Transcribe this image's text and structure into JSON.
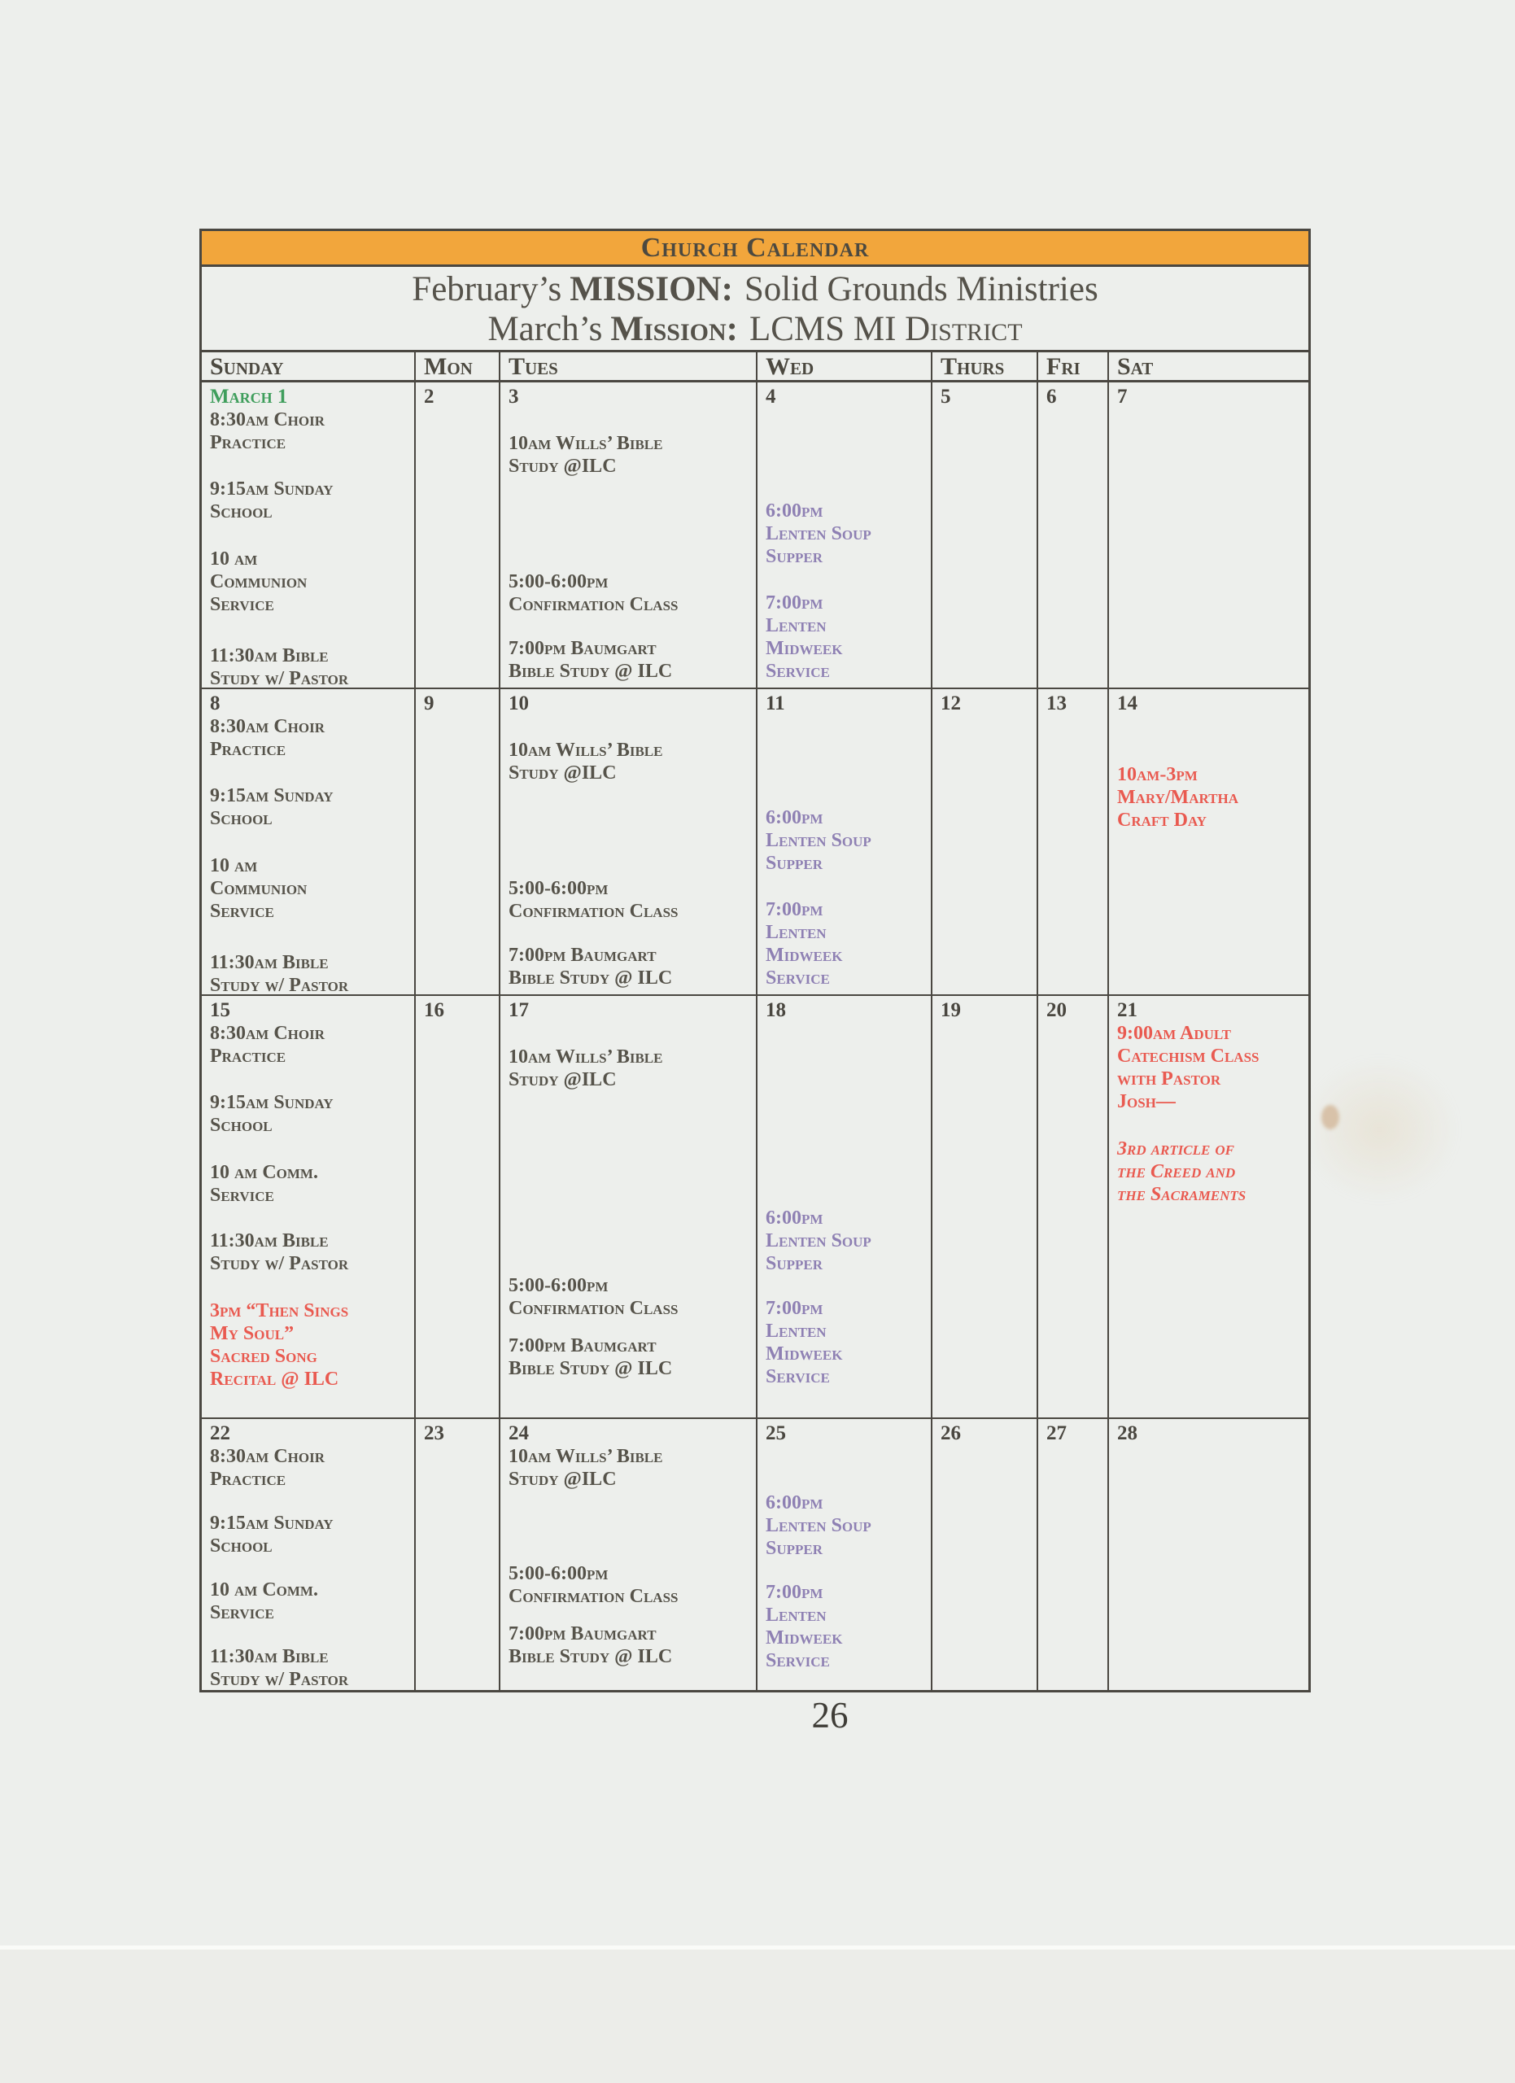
{
  "banner": {
    "title": "Church Calendar",
    "background_color": "#f2a63c"
  },
  "missions": [
    {
      "prefix": "February’s",
      "label": "MISSION:",
      "value": "Solid Grounds Ministries"
    },
    {
      "prefix": "March’s",
      "label": "Mission:",
      "value": "LCMS MI District"
    }
  ],
  "day_headers": [
    "Sunday",
    "Mon",
    "Tues",
    "Wed",
    "Thurs",
    "Fri",
    "Sat"
  ],
  "page_number": "26",
  "colors": {
    "banner_orange": "#f2a63c",
    "grid_line": "#4a4741",
    "event_default": "#56534a",
    "event_purple": "#8e80b3",
    "event_red": "#e95a50",
    "date_green": "#3f9e5c"
  },
  "weeks": [
    {
      "days": [
        {
          "number": "March 1",
          "number_color": "green",
          "events": [
            {
              "text": "8:30am Choir\nPractice",
              "gap": 0
            },
            {
              "text": "9:15am Sunday\nSchool",
              "gap": 29
            },
            {
              "text": "10 am\nCommunion\nService",
              "gap": 30
            },
            {
              "text": "11:30am Bible\nStudy w/ Pastor",
              "gap": 35
            }
          ]
        },
        {
          "number": "2",
          "events": []
        },
        {
          "number": "3",
          "events": [
            {
              "text": "10am Wills’ Bible\nStudy @ILC",
              "gap": 29
            },
            {
              "text": "5:00-6:00pm\nConfirmation Class",
              "gap": 114
            },
            {
              "text": "7:00pm Baumgart\nBible Study @ ILC",
              "gap": 26
            }
          ]
        },
        {
          "number": "4",
          "events": [
            {
              "text": "6:00pm\nLenten Soup\nSupper",
              "gap": 112,
              "color": "purple"
            },
            {
              "text": "7:00pm\nLenten\nMidweek\nService",
              "gap": 29,
              "color": "purple"
            }
          ]
        },
        {
          "number": "5",
          "events": []
        },
        {
          "number": "6",
          "events": []
        },
        {
          "number": "7",
          "events": []
        }
      ]
    },
    {
      "days": [
        {
          "number": "8",
          "events": [
            {
              "text": "8:30am Choir\nPractice",
              "gap": 0
            },
            {
              "text": "9:15am Sunday\nSchool",
              "gap": 29
            },
            {
              "text": "10 am\nCommunion\nService",
              "gap": 30
            },
            {
              "text": "11:30am Bible\nStudy w/ Pastor",
              "gap": 35
            }
          ]
        },
        {
          "number": "9",
          "events": []
        },
        {
          "number": "10",
          "events": [
            {
              "text": "10am Wills’ Bible\nStudy @ILC",
              "gap": 29
            },
            {
              "text": "5:00-6:00pm\nConfirmation Class",
              "gap": 114
            },
            {
              "text": "7:00pm Baumgart\nBible Study @ ILC",
              "gap": 26
            }
          ]
        },
        {
          "number": "11",
          "events": [
            {
              "text": "6:00pm\nLenten Soup\nSupper",
              "gap": 112,
              "color": "purple"
            },
            {
              "text": "7:00pm\nLenten\nMidweek\nService",
              "gap": 29,
              "color": "purple"
            }
          ]
        },
        {
          "number": "12",
          "events": []
        },
        {
          "number": "13",
          "events": []
        },
        {
          "number": "14",
          "events": [
            {
              "text": "10am-3pm\nMary/Martha\nCraft Day",
              "gap": 59,
              "color": "red"
            }
          ]
        }
      ]
    },
    {
      "days": [
        {
          "number": "15",
          "events": [
            {
              "text": "8:30am Choir\nPractice",
              "gap": 0
            },
            {
              "text": "9:15am Sunday\nSchool",
              "gap": 29
            },
            {
              "text": "10 am Comm.\nService",
              "gap": 30
            },
            {
              "text": "11:30am Bible\nStudy w/ Pastor",
              "gap": 28
            },
            {
              "text": "3pm “Then Sings\nMy Soul”\nSacred Song\nRecital @ ILC",
              "gap": 30,
              "color": "red"
            }
          ]
        },
        {
          "number": "16",
          "events": []
        },
        {
          "number": "17",
          "events": [
            {
              "text": "10am Wills’ Bible\nStudy @ILC",
              "gap": 29
            },
            {
              "text": "5:00-6:00pm\nConfirmation Class",
              "gap": 225
            },
            {
              "text": "7:00pm Baumgart\nBible Study @ ILC",
              "gap": 18
            }
          ]
        },
        {
          "number": "18",
          "events": [
            {
              "text": "6:00pm\nLenten Soup\nSupper",
              "gap": 227,
              "color": "purple"
            },
            {
              "text": "7:00pm\nLenten\nMidweek\nService",
              "gap": 27,
              "color": "purple"
            }
          ]
        },
        {
          "number": "19",
          "events": []
        },
        {
          "number": "20",
          "events": []
        },
        {
          "number": "21",
          "events": [
            {
              "text": "9:00am Adult\nCatechism Class\nwith Pastor\nJosh—",
              "gap": 0,
              "color": "red"
            },
            {
              "text": "3rd article of\nthe Creed and\nthe Sacraments",
              "gap": 30,
              "color": "red",
              "italic": true
            }
          ]
        }
      ]
    },
    {
      "days": [
        {
          "number": "22",
          "events": [
            {
              "text": "8:30am Choir\nPractice",
              "gap": 0
            },
            {
              "text": "9:15am Sunday\nSchool",
              "gap": 26
            },
            {
              "text": "10 am Comm.\nService",
              "gap": 26
            },
            {
              "text": "11:30am Bible\nStudy w/ Pastor",
              "gap": 26
            }
          ]
        },
        {
          "number": "23",
          "events": []
        },
        {
          "number": "24",
          "events": [
            {
              "text": "10am Wills’ Bible\nStudy @ILC",
              "gap": 0
            },
            {
              "text": "5:00-6:00pm\nConfirmation Class",
              "gap": 88
            },
            {
              "text": "7:00pm Baumgart\nBible Study @ ILC",
              "gap": 18
            }
          ]
        },
        {
          "number": "25",
          "events": [
            {
              "text": "6:00pm\nLenten Soup\nSupper",
              "gap": 57,
              "color": "purple"
            },
            {
              "text": "7:00pm\nLenten\nMidweek\nService",
              "gap": 26,
              "color": "purple"
            }
          ]
        },
        {
          "number": "26",
          "events": []
        },
        {
          "number": "27",
          "events": []
        },
        {
          "number": "28",
          "events": []
        }
      ]
    }
  ]
}
